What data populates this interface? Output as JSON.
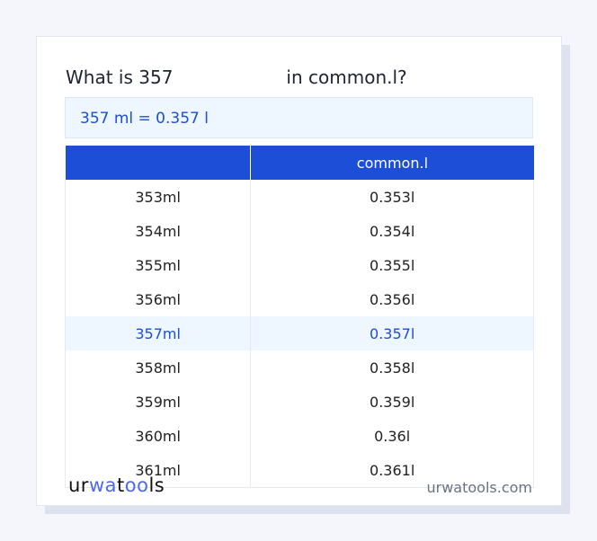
{
  "title": {
    "prefix": "What is 357",
    "suffix": "in common.l?"
  },
  "result": "357 ml = 0.357 l",
  "table": {
    "headers": [
      "",
      "common.l"
    ],
    "rows": [
      [
        "353ml",
        "0.353l"
      ],
      [
        "354ml",
        "0.354l"
      ],
      [
        "355ml",
        "0.355l"
      ],
      [
        "356ml",
        "0.356l"
      ],
      [
        "357ml",
        "0.357l"
      ],
      [
        "358ml",
        "0.358l"
      ],
      [
        "359ml",
        "0.359l"
      ],
      [
        "360ml",
        "0.36l"
      ],
      [
        "361ml",
        "0.361l"
      ]
    ],
    "highlighted_row": 4
  },
  "footer": {
    "logo": "urwatools",
    "site": "urwatools.com"
  },
  "colors": {
    "accent": "#1d4ed8",
    "highlight_bg": "#eef6ff"
  }
}
